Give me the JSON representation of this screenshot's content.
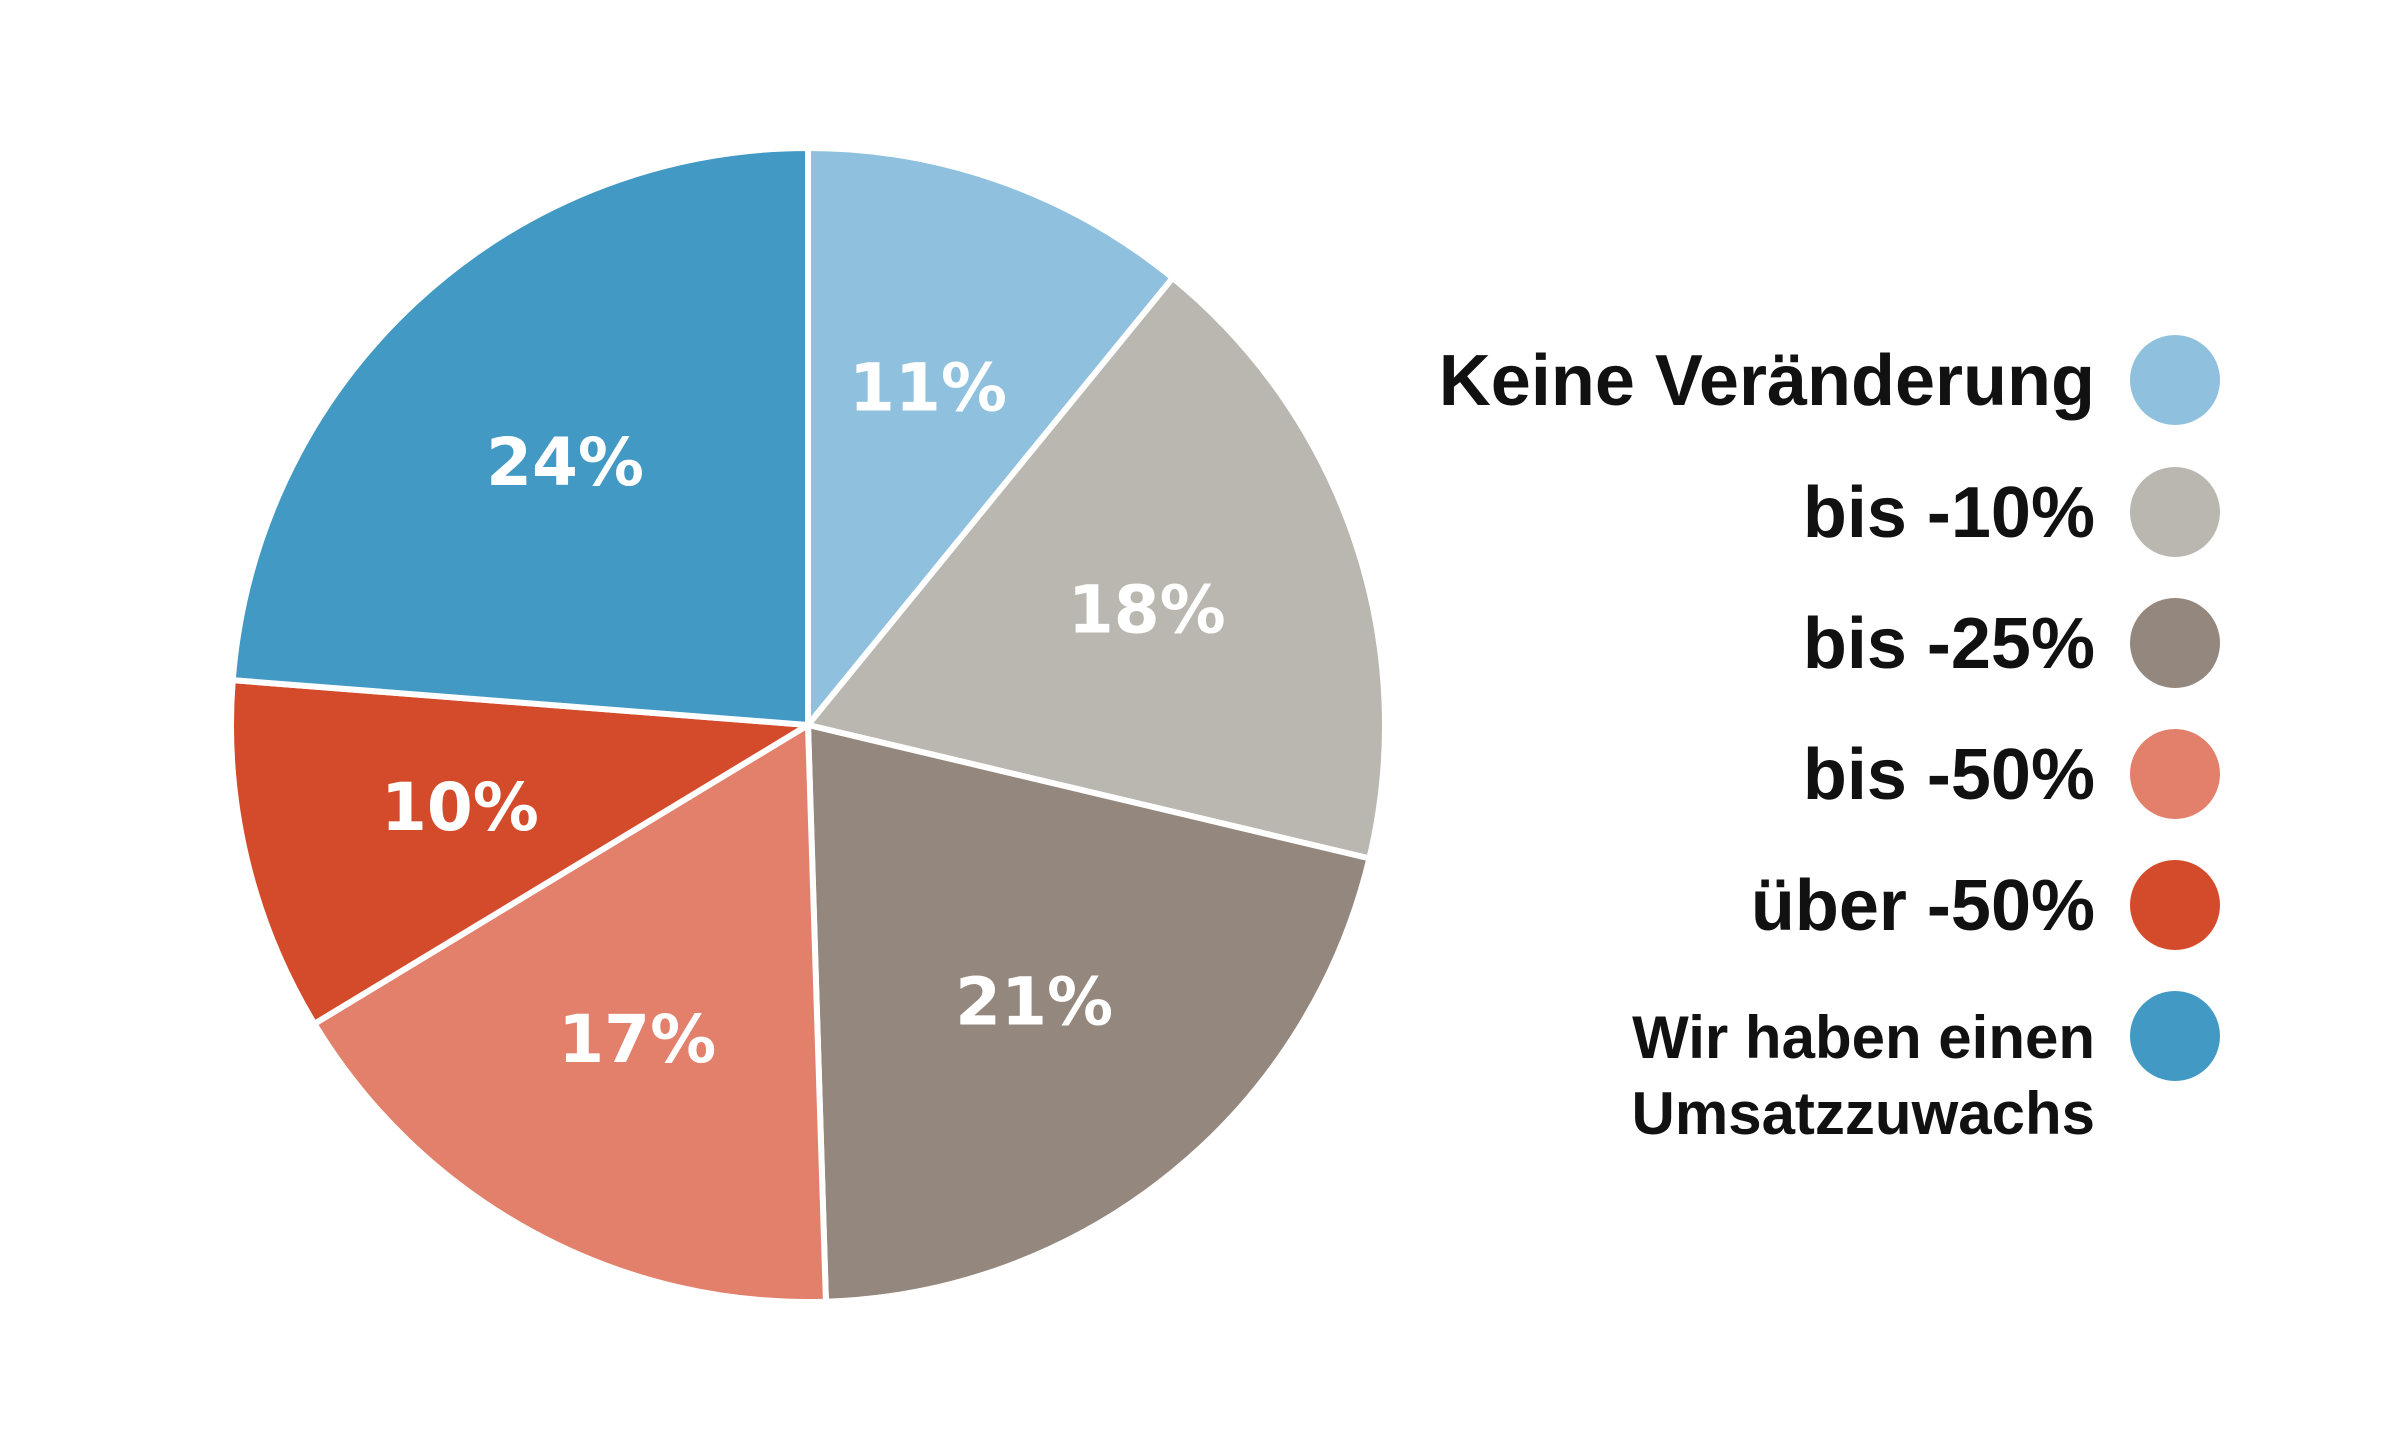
{
  "chart_data": {
    "type": "pie",
    "start_angle_deg": 0,
    "direction": "clockwise",
    "slices": [
      {
        "label": "Keine Veränderung",
        "value": 11,
        "value_label": "11%",
        "color": "#8FC1DF"
      },
      {
        "label": "bis -10%",
        "value": 18,
        "value_label": "18%",
        "color": "#BAB7B1"
      },
      {
        "label": "bis -25%",
        "value": 21,
        "value_label": "21%",
        "color": "#94877D"
      },
      {
        "label": "bis -50%",
        "value": 17,
        "value_label": "17%",
        "color": "#E2806B"
      },
      {
        "label": "über -50%",
        "value": 10,
        "value_label": "10%",
        "color": "#D44B2B"
      },
      {
        "label": "Wir haben einen Umsatzzuwachs",
        "label_lines": [
          "Wir haben einen",
          "Umsatzzuwachs"
        ],
        "value": 24,
        "value_label": "24%",
        "color": "#4299C4"
      }
    ],
    "legend": {
      "position": "right"
    }
  }
}
